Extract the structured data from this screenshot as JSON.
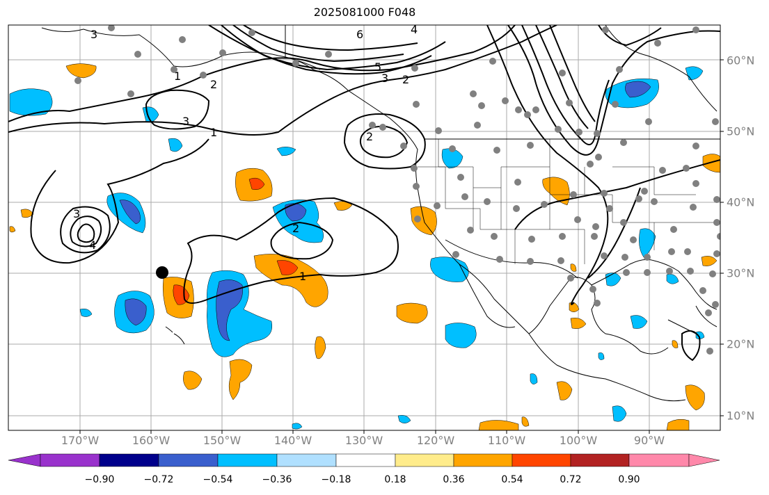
{
  "title": "2025081000 F048",
  "lon_labels": [
    "170°W",
    "160°W",
    "150°W",
    "140°W",
    "130°W",
    "120°W",
    "110°W",
    "100°W",
    "90°W"
  ],
  "lat_labels": [
    "60°N",
    "50°N",
    "40°N",
    "30°N",
    "20°N",
    "10°N"
  ],
  "colorbar": {
    "ticks": [
      "−0.90",
      "−0.72",
      "−0.54",
      "−0.36",
      "−0.18",
      "0.18",
      "0.36",
      "0.54",
      "0.72",
      "0.90"
    ],
    "colors": [
      "#9932cc",
      "#00008b",
      "#3a5fcd",
      "#00bfff",
      "#b0e0ff",
      "#ffffff",
      "#ffec8b",
      "#ffa500",
      "#ff4500",
      "#b22222",
      "#ff88aa"
    ]
  },
  "contour_labels": [
    "1",
    "1",
    "2",
    "2",
    "3",
    "3",
    "3",
    "4",
    "5",
    "6",
    "1",
    "2",
    "2",
    "3",
    "4"
  ],
  "colors": {
    "neg_fill": "#00bfff",
    "neg_core": "#3a5fcd",
    "pos_fill": "#ffa500",
    "pos_core": "#ff4500",
    "grid": "#999999",
    "station_dot": "#808080"
  }
}
